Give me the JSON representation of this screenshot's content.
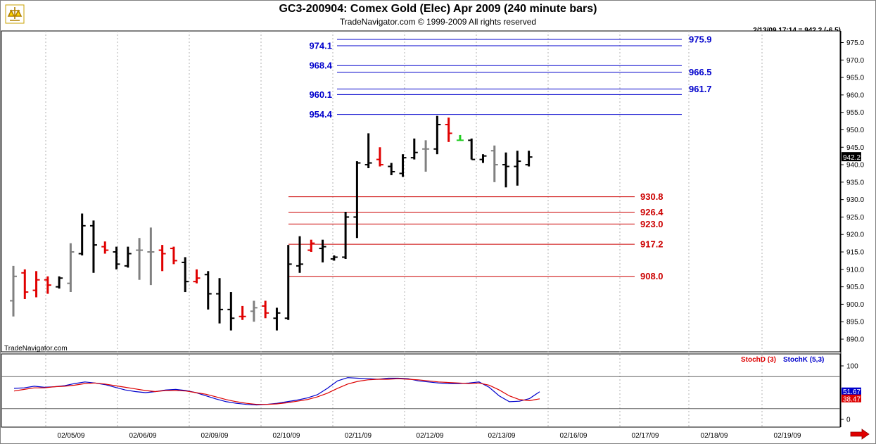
{
  "header": {
    "title": "GC3-200904:  Comex Gold (Elec) Apr 2009  (240 minute bars)",
    "copyright": "TradeNavigator.com © 1999-2009 All rights reserved",
    "last_price_stamp": "2/13/09 17:14 = 942.2 (-6.5)",
    "watermark": "TradeNavigator.com"
  },
  "colors": {
    "up_bar": "#000000",
    "down_bar": "#e00000",
    "neutral_bar": "#808080",
    "upper_levels": "#0000cc",
    "lower_levels": "#cc0000",
    "stochd": "#dd0000",
    "stochk": "#0000cc"
  },
  "icons": [
    "trade-navigator-logo-icon",
    "next-arrow-icon"
  ],
  "chart_data": [
    {
      "type": "ohlc",
      "ylim": [
        886,
        979
      ],
      "price_axis_ticks": [
        "975.0",
        "970.0",
        "965.0",
        "960.0",
        "955.0",
        "950.0",
        "945.0",
        "940.0",
        "935.0",
        "930.0",
        "925.0",
        "920.0",
        "915.0",
        "910.0",
        "905.0",
        "900.0",
        "895.0",
        "890.0"
      ],
      "last_price_label": "942.2",
      "last_price": 942.2,
      "date_labels": [
        "02/05/09",
        "02/06/09",
        "02/09/09",
        "02/10/09",
        "02/11/09",
        "02/12/09",
        "02/13/09",
        "02/16/09",
        "02/17/09",
        "02/18/09",
        "02/19/09"
      ],
      "upper_levels": [
        {
          "label": "974.1",
          "value": 974.1,
          "side": "left"
        },
        {
          "label": "975.9",
          "value": 975.9,
          "side": "right"
        },
        {
          "label": "968.4",
          "value": 968.4,
          "side": "left"
        },
        {
          "label": "966.5",
          "value": 966.5,
          "side": "right"
        },
        {
          "label": "960.1",
          "value": 960.1,
          "side": "left"
        },
        {
          "label": "961.7",
          "value": 961.7,
          "side": "right"
        },
        {
          "label": "954.4",
          "value": 954.4,
          "side": "left"
        }
      ],
      "lower_levels": [
        {
          "label": "930.8",
          "value": 930.8
        },
        {
          "label": "926.4",
          "value": 926.4
        },
        {
          "label": "923.0",
          "value": 923.0
        },
        {
          "label": "917.2",
          "value": 917.2
        },
        {
          "label": "908.0",
          "value": 908.0
        }
      ],
      "bars": [
        {
          "o": 901.0,
          "h": 911.0,
          "l": 896.5,
          "c": 908.0,
          "color": "neutral"
        },
        {
          "o": 909.0,
          "h": 910.0,
          "l": 901.5,
          "c": 903.5,
          "color": "down"
        },
        {
          "o": 904.0,
          "h": 909.5,
          "l": 902.0,
          "c": 907.0,
          "color": "down"
        },
        {
          "o": 907.0,
          "h": 908.0,
          "l": 903.0,
          "c": 905.5,
          "color": "down"
        },
        {
          "o": 905.0,
          "h": 908.0,
          "l": 904.5,
          "c": 907.5,
          "color": "up"
        },
        {
          "o": 906.0,
          "h": 917.5,
          "l": 903.5,
          "c": 915.0,
          "color": "neutral"
        },
        {
          "o": 914.5,
          "h": 926.0,
          "l": 914.0,
          "c": 922.5,
          "color": "up"
        },
        {
          "o": 922.5,
          "h": 924.0,
          "l": 909.0,
          "c": 917.0,
          "color": "up"
        },
        {
          "o": 916.5,
          "h": 918.0,
          "l": 914.5,
          "c": 915.5,
          "color": "down"
        },
        {
          "o": 915.0,
          "h": 916.5,
          "l": 910.0,
          "c": 911.5,
          "color": "up"
        },
        {
          "o": 911.0,
          "h": 916.5,
          "l": 910.5,
          "c": 914.5,
          "color": "up"
        },
        {
          "o": 915.5,
          "h": 919.0,
          "l": 907.0,
          "c": 915.5,
          "color": "neutral"
        },
        {
          "o": 915.0,
          "h": 922.0,
          "l": 905.5,
          "c": 915.0,
          "color": "neutral"
        },
        {
          "o": 915.5,
          "h": 917.0,
          "l": 909.5,
          "c": 914.5,
          "color": "down"
        },
        {
          "o": 916.0,
          "h": 916.5,
          "l": 911.5,
          "c": 912.5,
          "color": "down"
        },
        {
          "o": 912.0,
          "h": 913.5,
          "l": 903.5,
          "c": 906.5,
          "color": "up"
        },
        {
          "o": 906.5,
          "h": 910.0,
          "l": 906.0,
          "c": 907.5,
          "color": "down"
        },
        {
          "o": 908.5,
          "h": 909.5,
          "l": 898.5,
          "c": 903.0,
          "color": "up"
        },
        {
          "o": 903.0,
          "h": 907.5,
          "l": 894.5,
          "c": 898.5,
          "color": "up"
        },
        {
          "o": 898.5,
          "h": 903.5,
          "l": 892.5,
          "c": 896.0,
          "color": "up"
        },
        {
          "o": 896.5,
          "h": 899.5,
          "l": 895.5,
          "c": 896.5,
          "color": "down"
        },
        {
          "o": 898.0,
          "h": 901.0,
          "l": 895.0,
          "c": 899.0,
          "color": "neutral"
        },
        {
          "o": 899.5,
          "h": 901.0,
          "l": 896.0,
          "c": 897.5,
          "color": "down"
        },
        {
          "o": 896.0,
          "h": 899.0,
          "l": 892.5,
          "c": 897.5,
          "color": "up"
        },
        {
          "o": 896.0,
          "h": 917.0,
          "l": 895.5,
          "c": 911.5,
          "color": "up"
        },
        {
          "o": 911.0,
          "h": 919.5,
          "l": 909.0,
          "c": 911.5,
          "color": "up"
        },
        {
          "o": 915.5,
          "h": 918.5,
          "l": 915.0,
          "c": 917.5,
          "color": "down"
        },
        {
          "o": 916.0,
          "h": 918.5,
          "l": 912.0,
          "c": 916.5,
          "color": "up"
        },
        {
          "o": 913.0,
          "h": 914.0,
          "l": 912.5,
          "c": 913.5,
          "color": "up"
        },
        {
          "o": 913.5,
          "h": 926.5,
          "l": 913.0,
          "c": 925.0,
          "color": "up"
        },
        {
          "o": 925.0,
          "h": 941.0,
          "l": 919.0,
          "c": 940.5,
          "color": "up"
        },
        {
          "o": 940.0,
          "h": 949.0,
          "l": 939.0,
          "c": 940.5,
          "color": "up"
        },
        {
          "o": 941.5,
          "h": 945.0,
          "l": 939.5,
          "c": 940.0,
          "color": "down"
        },
        {
          "o": 939.5,
          "h": 940.5,
          "l": 937.0,
          "c": 938.0,
          "color": "up"
        },
        {
          "o": 937.5,
          "h": 943.0,
          "l": 936.5,
          "c": 942.0,
          "color": "up"
        },
        {
          "o": 942.0,
          "h": 947.5,
          "l": 941.5,
          "c": 943.5,
          "color": "up"
        },
        {
          "o": 944.5,
          "h": 947.0,
          "l": 938.0,
          "c": 944.5,
          "color": "neutral"
        },
        {
          "o": 944.5,
          "h": 954.0,
          "l": 943.0,
          "c": 951.5,
          "color": "up"
        },
        {
          "o": 951.5,
          "h": 953.5,
          "l": 946.5,
          "c": 949.0,
          "color": "down"
        },
        {
          "o": 947.0,
          "h": 948.5,
          "l": 947.0,
          "c": 947.0,
          "color": "green"
        },
        {
          "o": 947.0,
          "h": 947.5,
          "l": 941.5,
          "c": 941.5,
          "color": "up"
        },
        {
          "o": 941.5,
          "h": 943.0,
          "l": 940.5,
          "c": 942.5,
          "color": "up"
        },
        {
          "o": 944.0,
          "h": 945.5,
          "l": 935.0,
          "c": 940.0,
          "color": "neutral"
        },
        {
          "o": 940.0,
          "h": 943.5,
          "l": 933.5,
          "c": 939.5,
          "color": "up"
        },
        {
          "o": 939.5,
          "h": 944.0,
          "l": 934.0,
          "c": 941.0,
          "color": "up"
        },
        {
          "o": 940.0,
          "h": 944.0,
          "l": 939.5,
          "c": 942.2,
          "color": "up"
        }
      ]
    },
    {
      "type": "line",
      "legend": [
        {
          "label": "StochD (3)",
          "color_key": "stochd"
        },
        {
          "label": "StochK (5,3)",
          "color_key": "stochk"
        }
      ],
      "ylim": [
        0,
        100
      ],
      "grid_levels": [
        80,
        20
      ],
      "y_ticks": [
        "100",
        "0"
      ],
      "last_labels": [
        {
          "label": "51.67",
          "value": 51.67,
          "series": "StochK"
        },
        {
          "label": "38.47",
          "value": 38.47,
          "series": "StochD"
        }
      ],
      "series": [
        {
          "name": "StochK (5,3)",
          "values": [
            58,
            59,
            62,
            60,
            61,
            63,
            67,
            70,
            68,
            65,
            60,
            55,
            52,
            50,
            52,
            55,
            56,
            54,
            50,
            44,
            38,
            33,
            30,
            28,
            27,
            28,
            30,
            33,
            36,
            40,
            46,
            58,
            72,
            78,
            77,
            76,
            75,
            77,
            77,
            76,
            72,
            70,
            68,
            67,
            67,
            68,
            70,
            60,
            44,
            33,
            34,
            39,
            51.67
          ]
        },
        {
          "name": "StochD (3)",
          "values": [
            53,
            56,
            59,
            59,
            61,
            62,
            64,
            67,
            68,
            66,
            63,
            60,
            57,
            54,
            52,
            54,
            54,
            53,
            50,
            47,
            42,
            37,
            33,
            30,
            28,
            28,
            29,
            31,
            34,
            37,
            42,
            49,
            58,
            66,
            71,
            74,
            75,
            75,
            76,
            75,
            74,
            72,
            70,
            69,
            68,
            67,
            68,
            64,
            55,
            44,
            37,
            35,
            38.47
          ]
        }
      ]
    }
  ]
}
